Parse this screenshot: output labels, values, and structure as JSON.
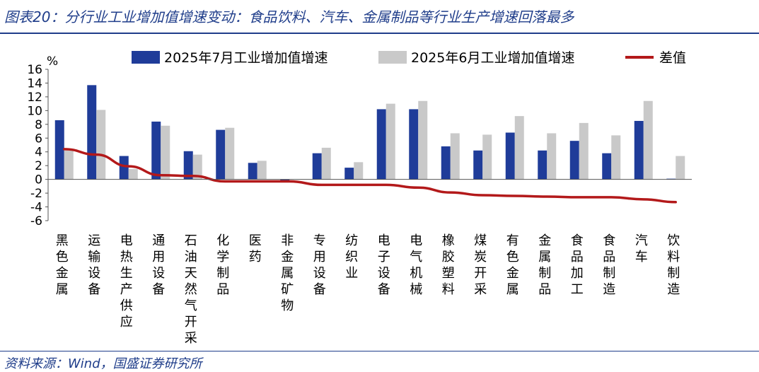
{
  "title": "图表20：分行业工业增加值增速变动：食品饮料、汽车、金属制品等行业生产增速回落最多",
  "source": "资料来源：Wind，国盛证券研究所",
  "chart_data": {
    "type": "bar",
    "ylabel": "%",
    "ylim": [
      -6,
      16
    ],
    "yticks": [
      16,
      14,
      12,
      10,
      8,
      6,
      4,
      2,
      0,
      -2,
      -4,
      -6
    ],
    "legend_position": "top",
    "categories": [
      "黑色金属",
      "运输设备",
      "电热生产供应",
      "通用设备",
      "石油天然气开采",
      "化学制品",
      "医药",
      "非金属矿物",
      "专用设备",
      "纺织业",
      "电子设备",
      "电气机械",
      "橡胶塑料",
      "煤炭开采",
      "有色金属",
      "金属制品",
      "食品加工",
      "食品制造",
      "汽车",
      "饮料制造"
    ],
    "series": [
      {
        "name": "2025年7月工业增加值增速",
        "kind": "bar",
        "color": "#1f3c99",
        "values": [
          8.6,
          13.7,
          3.4,
          8.4,
          4.1,
          7.2,
          2.4,
          -0.3,
          3.8,
          1.7,
          10.2,
          10.2,
          4.8,
          4.2,
          6.8,
          4.2,
          5.6,
          3.8,
          8.5,
          0.1
        ]
      },
      {
        "name": "2025年6月工业增加值增速",
        "kind": "bar",
        "color": "#c9c9c9",
        "values": [
          4.2,
          10.1,
          1.5,
          7.8,
          3.6,
          7.5,
          2.7,
          0.0,
          4.6,
          2.5,
          11.0,
          11.4,
          6.7,
          6.5,
          9.2,
          6.7,
          8.2,
          6.4,
          11.4,
          3.4
        ]
      },
      {
        "name": "差值",
        "kind": "line",
        "color": "#b3191a",
        "values": [
          4.4,
          3.6,
          1.9,
          0.6,
          0.5,
          -0.3,
          -0.3,
          -0.3,
          -0.8,
          -0.8,
          -0.8,
          -1.2,
          -1.9,
          -2.3,
          -2.4,
          -2.5,
          -2.6,
          -2.6,
          -2.9,
          -3.3
        ]
      }
    ]
  }
}
